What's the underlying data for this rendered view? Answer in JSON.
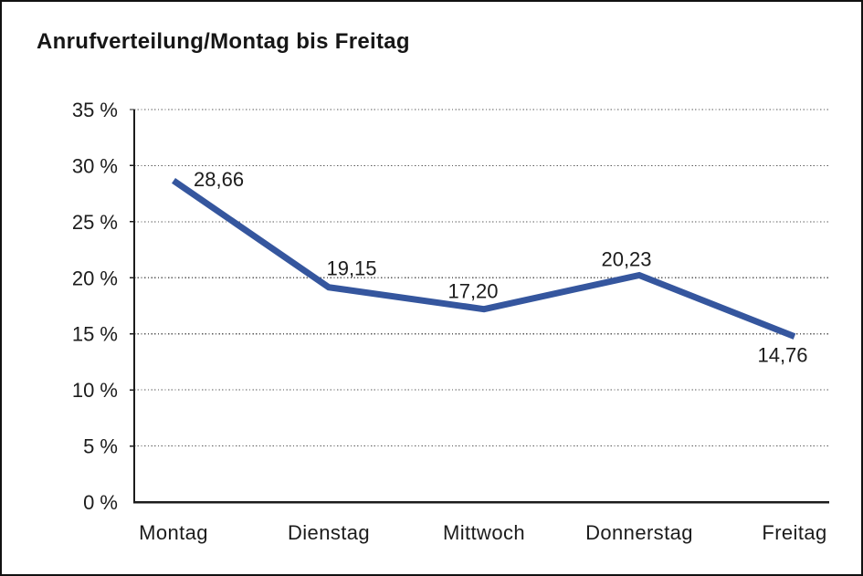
{
  "page": {
    "title": "Anrufverteilung/Montag bis Freitag"
  },
  "chart_data": {
    "type": "line",
    "title": "Anrufverteilung/Montag bis Freitag",
    "categories": [
      "Montag",
      "Dienstag",
      "Mittwoch",
      "Donnerstag",
      "Freitag"
    ],
    "values": [
      28.66,
      19.15,
      17.2,
      20.23,
      14.76
    ],
    "point_labels": [
      "28,66",
      "19,15",
      "17,20",
      "20,23",
      "14,76"
    ],
    "yticks": [
      0,
      5,
      10,
      15,
      20,
      25,
      30,
      35
    ],
    "ytick_labels": [
      "0 %",
      "5 %",
      "10 %",
      "15 %",
      "20 %",
      "25 %",
      "30 %",
      "35 %"
    ],
    "ylim": [
      0,
      35
    ],
    "xlabel": "",
    "ylabel": "",
    "legend": "none",
    "grid": "horizontal-dotted",
    "decimal_separator": ",",
    "line_color": "#35569e"
  },
  "colors": {
    "line": "#35569e",
    "frame_border": "#111111",
    "text": "#1c1c1c",
    "gridline": "#5a5a5a",
    "axis": "#1c1c1c",
    "background": "#ffffff"
  }
}
